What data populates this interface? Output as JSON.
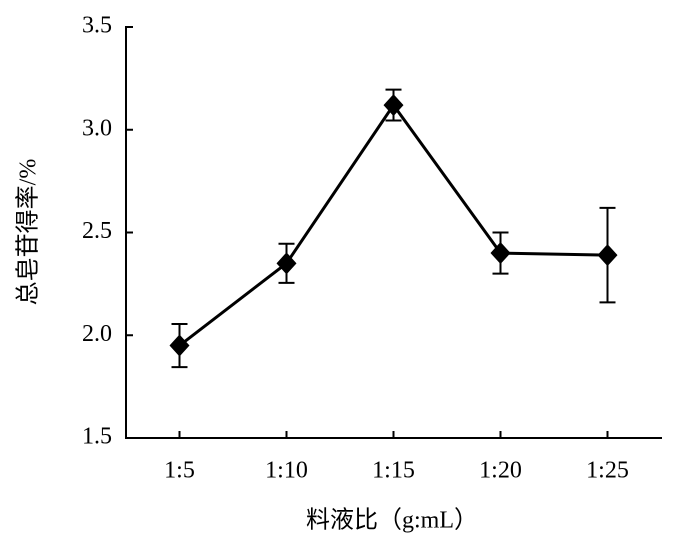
{
  "chart_data": {
    "type": "line",
    "x_label": "料液比（g:mL）",
    "y_label": "总皂苷得率/%",
    "categories": [
      "1:5",
      "1:10",
      "1:15",
      "1:20",
      "1:25"
    ],
    "series": [
      {
        "color": "#000000",
        "values": [
          1.95,
          2.35,
          3.12,
          2.4,
          2.39
        ],
        "errors": [
          0.105,
          0.095,
          0.075,
          0.1,
          0.23
        ]
      }
    ],
    "ylim": [
      1.5,
      3.5
    ],
    "yticks": [
      1.5,
      {
        "value": 2.0,
        "label": "2.0"
      },
      2.5,
      {
        "value": 3.0,
        "label": "3.0"
      },
      3.5
    ]
  }
}
